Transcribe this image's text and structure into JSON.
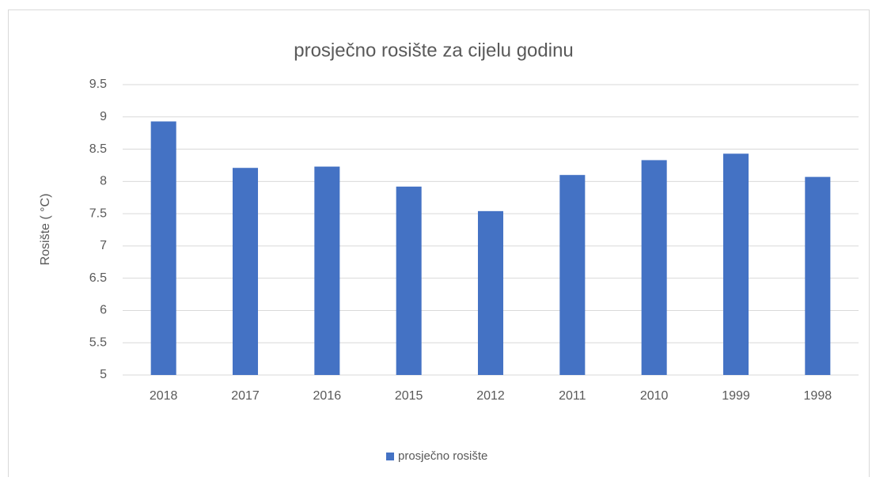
{
  "chart_data": {
    "type": "bar",
    "title": "prosječno rosište za cijelu godinu",
    "y_label": "Rosište ( °C)",
    "categories": [
      "2018",
      "2017",
      "2016",
      "2015",
      "2012",
      "2011",
      "2010",
      "1999",
      "1998"
    ],
    "series": [
      {
        "name": "prosječno rosište",
        "color": "#4472c4",
        "values": [
          8.93,
          8.21,
          8.23,
          7.92,
          7.54,
          8.1,
          8.33,
          8.43,
          8.07
        ]
      }
    ],
    "ylim": [
      5,
      9.5
    ],
    "yticks": [
      5,
      5.5,
      6,
      6.5,
      7,
      7.5,
      8,
      8.5,
      9,
      9.5
    ],
    "grid": true,
    "legend": "bottom"
  }
}
